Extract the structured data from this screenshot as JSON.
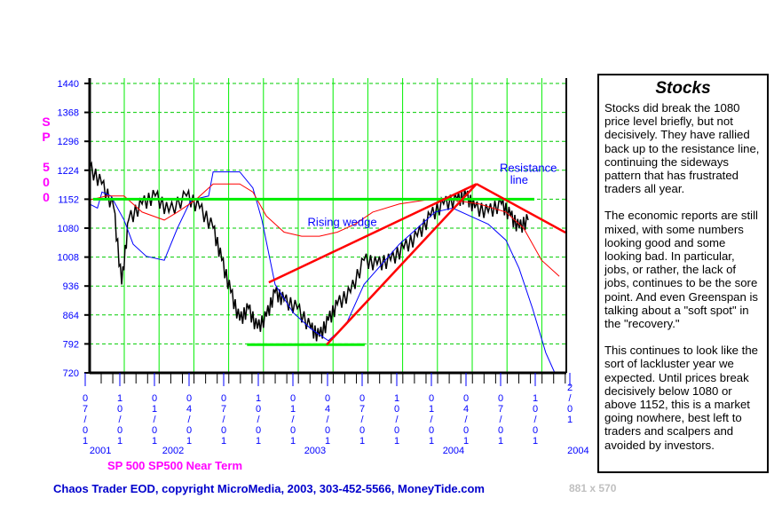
{
  "chart_data": {
    "type": "line",
    "x_unit": "quarters since 07/01/2001",
    "ylabel": "SP 500",
    "legend": "SP 500 SP500 Near Term",
    "ylim": [
      720,
      1440
    ],
    "yticks": [
      720,
      792,
      864,
      936,
      1008,
      1080,
      1152,
      1224,
      1296,
      1368,
      1440
    ],
    "xtick_labels": [
      "07/01",
      "10/01",
      "01/01",
      "04/01",
      "07/01",
      "10/01",
      "01/01",
      "04/01",
      "07/01",
      "10/01",
      "01/01",
      "04/01",
      "07/01",
      "10/01",
      "2/01"
    ],
    "year_labels": [
      {
        "label": "2001",
        "k": 0.1
      },
      {
        "label": "2002",
        "k": 2.2
      },
      {
        "label": "2003",
        "k": 6.3
      },
      {
        "label": "2004",
        "k": 10.3
      },
      {
        "label": "2004",
        "k": 13.9
      }
    ],
    "grid": true,
    "colors": {
      "price": "#000000",
      "blue": "#0000ff",
      "red": "#ff0000",
      "grid": "#00cc00",
      "support": "#00ee00",
      "trend": "#ff0000"
    },
    "series": [
      {
        "name": "SP 500",
        "color": "#000000",
        "points": [
          [
            0.15,
            1230
          ],
          [
            0.5,
            1190
          ],
          [
            0.85,
            1130
          ],
          [
            1.08,
            940
          ],
          [
            1.28,
            1100
          ],
          [
            1.67,
            1140
          ],
          [
            2.05,
            1160
          ],
          [
            2.44,
            1120
          ],
          [
            2.95,
            1160
          ],
          [
            3.33,
            1130
          ],
          [
            3.72,
            1080
          ],
          [
            3.97,
            1000
          ],
          [
            4.23,
            920
          ],
          [
            4.49,
            850
          ],
          [
            4.74,
            880
          ],
          [
            5.0,
            830
          ],
          [
            5.26,
            860
          ],
          [
            5.51,
            920
          ],
          [
            5.77,
            900
          ],
          [
            6.15,
            880
          ],
          [
            6.54,
            830
          ],
          [
            6.79,
            810
          ],
          [
            7.05,
            850
          ],
          [
            7.31,
            890
          ],
          [
            7.69,
            920
          ],
          [
            8.08,
            1000
          ],
          [
            8.46,
            990
          ],
          [
            8.85,
            1000
          ],
          [
            9.23,
            1030
          ],
          [
            9.62,
            1060
          ],
          [
            10.0,
            1110
          ],
          [
            10.38,
            1140
          ],
          [
            10.77,
            1150
          ],
          [
            11.03,
            1160
          ],
          [
            11.28,
            1130
          ],
          [
            11.67,
            1120
          ],
          [
            12.05,
            1140
          ],
          [
            12.31,
            1110
          ],
          [
            12.56,
            1080
          ],
          [
            12.82,
            1100
          ]
        ]
      },
      {
        "name": "SP500 Near Term",
        "color": "#0000ff",
        "points": [
          [
            0.15,
            1140
          ],
          [
            0.38,
            1130
          ],
          [
            0.51,
            1170
          ],
          [
            0.77,
            1160
          ],
          [
            1.15,
            1100
          ],
          [
            1.41,
            1040
          ],
          [
            1.79,
            1010
          ],
          [
            2.31,
            1000
          ],
          [
            2.69,
            1080
          ],
          [
            3.08,
            1150
          ],
          [
            3.59,
            1160
          ],
          [
            3.72,
            1220
          ],
          [
            4.49,
            1220
          ],
          [
            4.87,
            1180
          ],
          [
            5.13,
            1100
          ],
          [
            5.51,
            940
          ],
          [
            6.03,
            870
          ],
          [
            6.54,
            830
          ],
          [
            7.05,
            800
          ],
          [
            7.56,
            840
          ],
          [
            8.08,
            940
          ],
          [
            8.59,
            990
          ],
          [
            9.1,
            1040
          ],
          [
            9.62,
            1080
          ],
          [
            10.13,
            1120
          ],
          [
            10.64,
            1130
          ],
          [
            11.15,
            1110
          ],
          [
            11.67,
            1090
          ],
          [
            12.18,
            1050
          ],
          [
            12.56,
            980
          ],
          [
            12.95,
            880
          ],
          [
            13.33,
            770
          ],
          [
            13.59,
            720
          ]
        ]
      },
      {
        "name": "Trend",
        "color": "#ff0000",
        "points": [
          [
            0.15,
            1150
          ],
          [
            0.64,
            1160
          ],
          [
            1.15,
            1160
          ],
          [
            1.67,
            1120
          ],
          [
            2.31,
            1100
          ],
          [
            2.69,
            1120
          ],
          [
            3.21,
            1150
          ],
          [
            3.72,
            1190
          ],
          [
            4.49,
            1190
          ],
          [
            4.87,
            1170
          ],
          [
            5.26,
            1110
          ],
          [
            5.77,
            1070
          ],
          [
            6.28,
            1060
          ],
          [
            6.79,
            1060
          ],
          [
            7.31,
            1070
          ],
          [
            7.82,
            1090
          ],
          [
            8.33,
            1120
          ],
          [
            9.1,
            1140
          ],
          [
            9.87,
            1150
          ],
          [
            10.64,
            1150
          ],
          [
            11.41,
            1140
          ],
          [
            12.18,
            1120
          ],
          [
            12.69,
            1080
          ],
          [
            13.21,
            1000
          ],
          [
            13.72,
            960
          ]
        ]
      }
    ],
    "drawn_lines": [
      {
        "name": "resistance-1152",
        "color": "#00ee00",
        "from": [
          0.25,
          1152
        ],
        "to": [
          13.0,
          1152
        ]
      },
      {
        "name": "support-790",
        "color": "#00ee00",
        "from": [
          4.7,
          790
        ],
        "to": [
          8.1,
          790
        ]
      },
      {
        "name": "wedge-upper",
        "color": "#ff0000",
        "from": [
          5.33,
          945
        ],
        "to": [
          11.33,
          1190
        ]
      },
      {
        "name": "wedge-lower",
        "color": "#ff0000",
        "from": [
          7.0,
          790
        ],
        "to": [
          11.33,
          1190
        ]
      },
      {
        "name": "resistance-line",
        "color": "#ff0000",
        "from": [
          11.33,
          1190
        ],
        "to": [
          13.9,
          1069
        ]
      }
    ],
    "annotations": [
      {
        "text": "Rising wedge",
        "k": 6.45,
        "price": 1085
      },
      {
        "text": "Resistance",
        "k": 12.0,
        "price": 1220
      },
      {
        "text": "line",
        "k": 12.3,
        "price": 1190
      }
    ]
  },
  "notes": {
    "title": "Stocks",
    "paragraphs": [
      "Stocks did break the 1080 price level briefly, but not decisively. They have rallied back up to the resistance line, continuing the sideways pattern that has frustrated traders all year.",
      "The economic reports are still mixed, with some numbers looking good and some looking bad. In particular, jobs, or rather, the lack of jobs, continues to be the sore point. And even Greenspan is talking about a \"soft spot\" in the \"recovery.\"",
      "This continues to look like the sort of lackluster year we expected. Until prices break decisively below 1080 or above 1152,  this is a market going nowhere, best left to traders and scalpers and avoided by investors."
    ]
  },
  "footer": "Chaos Trader EOD, copyright MicroMedia, 2003, 303-452-5566, MoneyTide.com",
  "dims": "881 x 570"
}
